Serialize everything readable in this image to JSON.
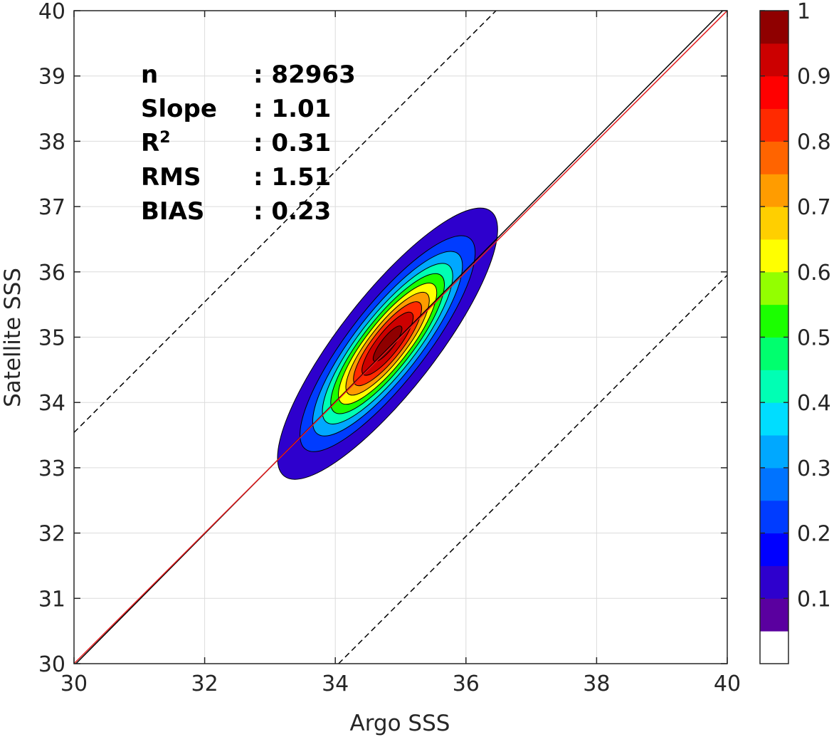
{
  "chart_data": {
    "type": "contour",
    "xlabel": "Argo SSS",
    "ylabel": "Satellite SSS",
    "xlim": [
      30,
      40
    ],
    "ylim": [
      30,
      40
    ],
    "x_ticks": [
      "30",
      "32",
      "34",
      "36",
      "38",
      "40"
    ],
    "y_ticks": [
      "30",
      "31",
      "32",
      "33",
      "34",
      "35",
      "36",
      "37",
      "38",
      "39",
      "40"
    ],
    "grid": true,
    "stats": [
      {
        "label": "n",
        "value": ": 82963"
      },
      {
        "label": "Slope",
        "value": ": 1.01"
      },
      {
        "label": "R",
        "superscript": "2",
        "value": ": 0.31"
      },
      {
        "label": "RMS",
        "value": ": 1.51"
      },
      {
        "label": "BIAS",
        "value": ": 0.23"
      }
    ],
    "reference_lines": {
      "identity": {
        "color": "#e31a1c",
        "slope": 1,
        "intercept": 0
      },
      "regression": {
        "color": "#000000",
        "slope": 1.01,
        "intercept": -0.33
      },
      "bounds_dashed": [
        {
          "color": "#000000",
          "slope": 1,
          "intercept": 3.54
        },
        {
          "color": "#000000",
          "slope": 1,
          "intercept": -4.05
        }
      ]
    },
    "density_center": {
      "x": 34.8,
      "y": 34.9
    },
    "contour_levels": [
      0.05,
      0.15,
      0.25,
      0.35,
      0.45,
      0.55,
      0.65,
      0.75,
      0.85,
      0.95
    ],
    "colorbar": {
      "min": 0,
      "max": 1,
      "ticks": [
        "0.1",
        "0.2",
        "0.3",
        "0.4",
        "0.5",
        "0.6",
        "0.7",
        "0.8",
        "0.9",
        "1"
      ],
      "colors": [
        "#ffffff",
        "#5a009f",
        "#2e00cd",
        "#0000ff",
        "#003cff",
        "#0073ff",
        "#00a8ff",
        "#00ddff",
        "#00ffb4",
        "#00ff6e",
        "#1bff00",
        "#93ff00",
        "#ffff00",
        "#ffcf00",
        "#ff9c00",
        "#ff6400",
        "#ff2a00",
        "#ff0000",
        "#cc0000",
        "#8f0000"
      ]
    }
  }
}
